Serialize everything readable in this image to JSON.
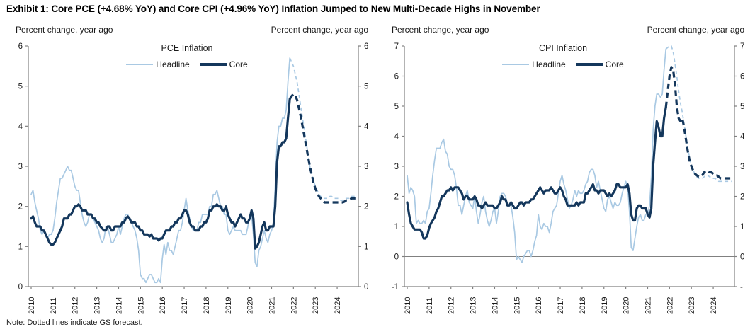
{
  "title": "Exhibit 1: Core PCE (+4.68% YoY) and Core CPI (+4.96% YoY) Inflation Jumped to New Multi-Decade Highs in November",
  "note": "Note: Dotted lines indicate GS forecast.",
  "colors": {
    "headline": "#a9c9e3",
    "core": "#14375c",
    "axis": "#808080",
    "zero_line": "#808080",
    "text": "#1a1a1a"
  },
  "legend_note": "solid = actual, dashed = GS forecast",
  "chart_data": [
    {
      "type": "line",
      "title": "PCE Inflation",
      "y_caption_left": "Percent change, year ago",
      "y_caption_right": "Percent change, year ago",
      "ylim": [
        0,
        6
      ],
      "yticks": [
        0,
        1,
        2,
        3,
        4,
        5,
        6
      ],
      "xticks": [
        2010,
        2011,
        2012,
        2013,
        2014,
        2015,
        2016,
        2017,
        2018,
        2019,
        2020,
        2021,
        2022,
        2023,
        2024
      ],
      "x_start": 2010.0,
      "x_step": "monthly",
      "forecast_start": "2021-12",
      "zero_line": false,
      "legend_position": "top-center",
      "series": [
        {
          "name": "Headline",
          "color": "#a9c9e3",
          "width": 1.7,
          "dash": "5 4",
          "actual": [
            2.3,
            2.4,
            2.1,
            1.9,
            1.7,
            1.4,
            1.3,
            1.4,
            1.3,
            1.2,
            1.3,
            1.3,
            1.4,
            1.7,
            2.1,
            2.4,
            2.7,
            2.7,
            2.8,
            2.9,
            3.0,
            2.9,
            2.9,
            2.7,
            2.5,
            2.4,
            2.4,
            2.1,
            1.8,
            1.6,
            1.5,
            1.6,
            1.8,
            1.8,
            1.7,
            1.6,
            1.5,
            1.4,
            1.2,
            1.1,
            1.2,
            1.5,
            1.5,
            1.3,
            1.1,
            1.1,
            1.2,
            1.3,
            1.5,
            1.3,
            1.5,
            1.7,
            1.8,
            1.8,
            1.7,
            1.6,
            1.5,
            1.4,
            1.2,
            0.9,
            0.3,
            0.2,
            0.2,
            0.1,
            0.2,
            0.3,
            0.3,
            0.2,
            0.1,
            0.1,
            0.2,
            0.1,
            0.7,
            1.05,
            0.8,
            1.1,
            0.9,
            0.9,
            0.8,
            1.0,
            1.2,
            1.4,
            1.4,
            1.6,
            1.9,
            2.2,
            1.9,
            1.7,
            1.5,
            1.4,
            1.4,
            1.4,
            1.6,
            1.6,
            1.8,
            1.8,
            1.8,
            1.8,
            2.0,
            2.0,
            2.3,
            2.3,
            2.4,
            2.2,
            2.0,
            2.0,
            1.8,
            1.8,
            1.4,
            1.3,
            1.4,
            1.5,
            1.4,
            1.4,
            1.4,
            1.4,
            1.3,
            1.3,
            1.3,
            1.5,
            1.8,
            1.8,
            1.3,
            0.6,
            0.5,
            0.9,
            1.0,
            1.2,
            1.4,
            1.2,
            1.1,
            1.3,
            1.4,
            1.6,
            2.5,
            3.6,
            4.0,
            4.0,
            4.2,
            4.2,
            4.4,
            5.1,
            5.7
          ],
          "forecast": [
            5.6,
            5.5,
            5.3,
            5.1,
            4.8,
            4.5,
            4.2,
            3.9,
            3.6,
            3.3,
            3.0,
            2.8,
            2.65,
            2.5,
            2.4,
            2.3,
            2.25,
            2.2,
            2.2,
            2.2,
            2.2,
            2.25,
            2.25,
            2.2,
            2.2,
            2.2,
            2.2,
            2.15,
            2.15,
            2.2,
            2.2,
            2.2,
            2.2,
            2.25,
            2.25,
            2.25
          ]
        },
        {
          "name": "Core",
          "color": "#14375c",
          "width": 3.2,
          "dash": "8 5",
          "actual": [
            1.7,
            1.75,
            1.6,
            1.5,
            1.5,
            1.5,
            1.4,
            1.4,
            1.3,
            1.2,
            1.1,
            1.05,
            1.05,
            1.1,
            1.2,
            1.3,
            1.4,
            1.5,
            1.7,
            1.7,
            1.7,
            1.8,
            1.8,
            1.9,
            2.0,
            2.0,
            2.05,
            2.0,
            1.9,
            1.9,
            1.9,
            1.8,
            1.8,
            1.8,
            1.7,
            1.7,
            1.6,
            1.6,
            1.5,
            1.45,
            1.4,
            1.4,
            1.5,
            1.5,
            1.4,
            1.4,
            1.5,
            1.5,
            1.5,
            1.5,
            1.6,
            1.6,
            1.7,
            1.75,
            1.7,
            1.6,
            1.6,
            1.6,
            1.5,
            1.5,
            1.4,
            1.4,
            1.3,
            1.3,
            1.3,
            1.25,
            1.3,
            1.2,
            1.2,
            1.2,
            1.15,
            1.2,
            1.2,
            1.3,
            1.4,
            1.4,
            1.4,
            1.5,
            1.5,
            1.6,
            1.6,
            1.7,
            1.7,
            1.8,
            1.9,
            1.9,
            1.8,
            1.6,
            1.5,
            1.5,
            1.4,
            1.4,
            1.4,
            1.5,
            1.5,
            1.6,
            1.6,
            1.7,
            1.9,
            1.9,
            2.0,
            2.0,
            2.05,
            2.0,
            2.0,
            1.9,
            1.9,
            2.0,
            1.8,
            1.7,
            1.6,
            1.6,
            1.5,
            1.6,
            1.7,
            1.8,
            1.7,
            1.7,
            1.6,
            1.6,
            1.7,
            1.9,
            1.7,
            0.95,
            1.0,
            1.1,
            1.3,
            1.5,
            1.6,
            1.4,
            1.4,
            1.5,
            1.5,
            1.5,
            2.0,
            3.1,
            3.5,
            3.5,
            3.6,
            3.6,
            3.7,
            4.2,
            4.68
          ],
          "forecast": [
            4.75,
            4.8,
            4.78,
            4.65,
            4.45,
            4.25,
            4.0,
            3.75,
            3.5,
            3.25,
            3.0,
            2.8,
            2.6,
            2.45,
            2.35,
            2.25,
            2.2,
            2.15,
            2.1,
            2.1,
            2.1,
            2.1,
            2.1,
            2.1,
            2.1,
            2.1,
            2.1,
            2.1,
            2.1,
            2.12,
            2.15,
            2.15,
            2.18,
            2.2,
            2.2,
            2.2
          ]
        }
      ]
    },
    {
      "type": "line",
      "title": "CPI Inflation",
      "y_caption_left": "Percent change, year ago",
      "y_caption_right": "Percent change, year ago",
      "ylim": [
        -1,
        7
      ],
      "yticks": [
        -1,
        0,
        1,
        2,
        3,
        4,
        5,
        6,
        7
      ],
      "xticks": [
        2010,
        2011,
        2012,
        2013,
        2014,
        2015,
        2016,
        2017,
        2018,
        2019,
        2020,
        2021,
        2022,
        2023,
        2024
      ],
      "x_start": 2010.0,
      "x_step": "monthly",
      "forecast_start": "2021-12",
      "zero_line": true,
      "legend_position": "top-center",
      "series": [
        {
          "name": "Headline",
          "color": "#a9c9e3",
          "width": 1.7,
          "dash": "5 4",
          "actual": [
            2.7,
            2.1,
            2.3,
            2.2,
            2.0,
            1.1,
            1.2,
            1.1,
            1.1,
            1.2,
            1.1,
            1.5,
            1.6,
            2.1,
            2.7,
            3.2,
            3.6,
            3.6,
            3.6,
            3.8,
            3.9,
            3.5,
            3.4,
            3.0,
            2.9,
            2.9,
            2.7,
            2.3,
            1.7,
            1.7,
            1.4,
            1.7,
            2.0,
            2.2,
            1.8,
            1.7,
            1.6,
            2.0,
            1.5,
            1.1,
            1.4,
            1.8,
            2.0,
            1.5,
            1.2,
            1.0,
            1.2,
            1.5,
            1.6,
            1.1,
            1.5,
            2.0,
            2.1,
            2.1,
            2.0,
            1.7,
            1.7,
            1.7,
            1.3,
            0.8,
            -0.1,
            0.0,
            -0.1,
            -0.2,
            0.0,
            0.1,
            0.2,
            0.2,
            0.0,
            0.2,
            0.5,
            0.7,
            1.4,
            1.0,
            0.9,
            1.1,
            1.0,
            1.0,
            0.8,
            1.1,
            1.5,
            1.6,
            1.7,
            2.1,
            2.5,
            2.7,
            2.4,
            2.2,
            1.9,
            1.6,
            1.7,
            1.9,
            2.2,
            2.0,
            2.2,
            2.1,
            2.1,
            2.2,
            2.4,
            2.5,
            2.8,
            2.9,
            2.9,
            2.7,
            2.3,
            2.5,
            2.2,
            1.9,
            1.6,
            1.5,
            1.9,
            2.0,
            1.8,
            1.6,
            1.8,
            1.7,
            1.7,
            1.8,
            2.1,
            2.3,
            2.5,
            2.3,
            1.5,
            0.3,
            0.2,
            0.6,
            1.0,
            1.3,
            1.4,
            1.2,
            1.2,
            1.4,
            1.4,
            1.7,
            2.6,
            4.2,
            5.0,
            5.4,
            5.4,
            5.3,
            5.4,
            6.2,
            6.9
          ],
          "forecast": [
            6.95,
            7.0,
            7.0,
            6.8,
            6.4,
            6.0,
            5.5,
            5.1,
            4.8,
            4.4,
            4.0,
            3.6,
            3.3,
            3.0,
            2.85,
            2.75,
            2.65,
            2.6,
            2.6,
            2.6,
            2.65,
            2.7,
            2.7,
            2.65,
            2.65,
            2.6,
            2.6,
            2.55,
            2.5,
            2.5,
            2.5,
            2.5,
            2.5,
            2.5,
            2.5,
            2.5
          ]
        },
        {
          "name": "Core",
          "color": "#14375c",
          "width": 3.2,
          "dash": "8 5",
          "actual": [
            1.8,
            1.4,
            1.1,
            1.0,
            0.9,
            0.9,
            0.9,
            0.9,
            0.8,
            0.6,
            0.6,
            0.7,
            0.95,
            1.1,
            1.2,
            1.3,
            1.5,
            1.6,
            1.8,
            2.0,
            2.0,
            2.1,
            2.2,
            2.2,
            2.3,
            2.2,
            2.3,
            2.3,
            2.3,
            2.2,
            2.1,
            1.9,
            2.0,
            2.0,
            1.9,
            1.9,
            1.9,
            2.0,
            1.9,
            1.7,
            1.7,
            1.6,
            1.7,
            1.8,
            1.7,
            1.7,
            1.7,
            1.7,
            1.6,
            1.6,
            1.7,
            1.8,
            2.0,
            1.9,
            1.9,
            1.7,
            1.7,
            1.8,
            1.7,
            1.6,
            1.6,
            1.7,
            1.8,
            1.8,
            1.7,
            1.8,
            1.8,
            1.8,
            1.9,
            1.9,
            2.0,
            2.1,
            2.2,
            2.3,
            2.2,
            2.1,
            2.2,
            2.2,
            2.2,
            2.3,
            2.2,
            2.1,
            2.1,
            2.2,
            2.3,
            2.2,
            2.0,
            1.9,
            1.7,
            1.7,
            1.7,
            1.7,
            1.7,
            1.8,
            1.7,
            1.8,
            1.8,
            1.8,
            2.1,
            2.1,
            2.2,
            2.3,
            2.4,
            2.2,
            2.2,
            2.1,
            2.2,
            2.2,
            2.2,
            2.1,
            2.0,
            2.1,
            2.0,
            2.1,
            2.2,
            2.4,
            2.4,
            2.3,
            2.3,
            2.3,
            2.3,
            2.4,
            2.1,
            1.4,
            1.2,
            1.2,
            1.6,
            1.7,
            1.7,
            1.6,
            1.6,
            1.6,
            1.4,
            1.3,
            1.6,
            3.0,
            3.8,
            4.5,
            4.3,
            4.0,
            4.0,
            4.6,
            4.96
          ],
          "forecast": [
            5.5,
            6.0,
            6.3,
            6.2,
            5.7,
            5.0,
            4.6,
            4.5,
            4.6,
            4.3,
            3.9,
            3.5,
            3.2,
            3.0,
            2.85,
            2.75,
            2.7,
            2.65,
            2.65,
            2.7,
            2.8,
            2.85,
            2.85,
            2.8,
            2.8,
            2.75,
            2.7,
            2.7,
            2.65,
            2.6,
            2.6,
            2.6,
            2.6,
            2.6,
            2.6,
            2.6
          ]
        }
      ]
    }
  ]
}
